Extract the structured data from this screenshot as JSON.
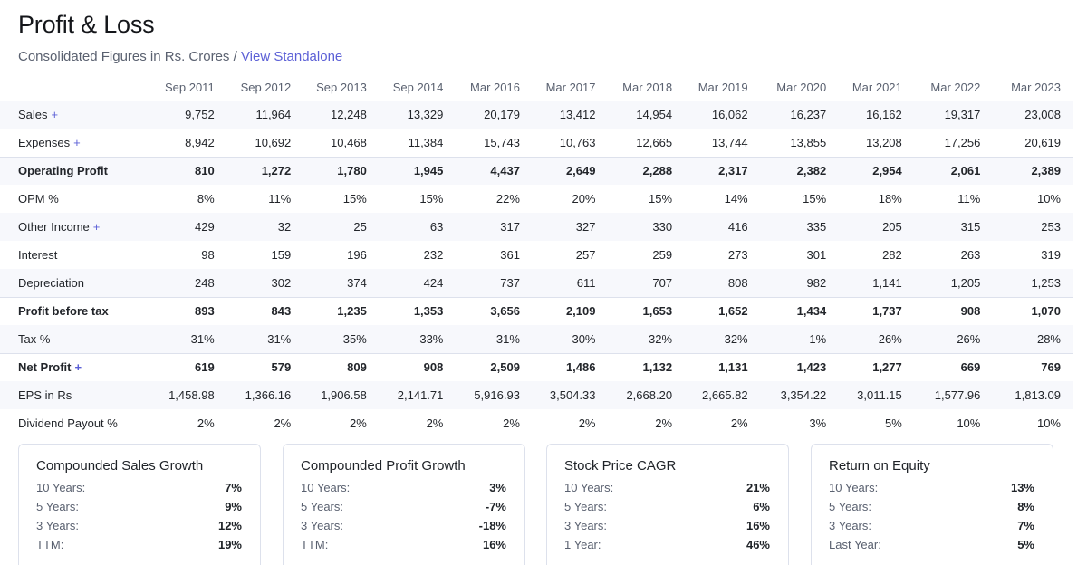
{
  "header": {
    "title": "Profit & Loss",
    "subtitle_prefix": "Consolidated Figures in Rs. Crores / ",
    "subtitle_link": "View Standalone"
  },
  "table": {
    "columns": [
      "Sep 2011",
      "Sep 2012",
      "Sep 2013",
      "Sep 2014",
      "Mar 2016",
      "Mar 2017",
      "Mar 2018",
      "Mar 2019",
      "Mar 2020",
      "Mar 2021",
      "Mar 2022",
      "Mar 2023"
    ],
    "rows": [
      {
        "label": "Sales",
        "expandable": true,
        "strong": false,
        "values": [
          "9,752",
          "11,964",
          "12,248",
          "13,329",
          "20,179",
          "13,412",
          "14,954",
          "16,062",
          "16,237",
          "16,162",
          "19,317",
          "23,008"
        ]
      },
      {
        "label": "Expenses",
        "expandable": true,
        "strong": false,
        "values": [
          "8,942",
          "10,692",
          "10,468",
          "11,384",
          "15,743",
          "10,763",
          "12,665",
          "13,744",
          "13,855",
          "13,208",
          "17,256",
          "20,619"
        ]
      },
      {
        "label": "Operating Profit",
        "expandable": false,
        "strong": true,
        "values": [
          "810",
          "1,272",
          "1,780",
          "1,945",
          "4,437",
          "2,649",
          "2,288",
          "2,317",
          "2,382",
          "2,954",
          "2,061",
          "2,389"
        ]
      },
      {
        "label": "OPM %",
        "expandable": false,
        "strong": false,
        "values": [
          "8%",
          "11%",
          "15%",
          "15%",
          "22%",
          "20%",
          "15%",
          "14%",
          "15%",
          "18%",
          "11%",
          "10%"
        ]
      },
      {
        "label": "Other Income",
        "expandable": true,
        "strong": false,
        "values": [
          "429",
          "32",
          "25",
          "63",
          "317",
          "327",
          "330",
          "416",
          "335",
          "205",
          "315",
          "253"
        ]
      },
      {
        "label": "Interest",
        "expandable": false,
        "strong": false,
        "values": [
          "98",
          "159",
          "196",
          "232",
          "361",
          "257",
          "259",
          "273",
          "301",
          "282",
          "263",
          "319"
        ]
      },
      {
        "label": "Depreciation",
        "expandable": false,
        "strong": false,
        "values": [
          "248",
          "302",
          "374",
          "424",
          "737",
          "611",
          "707",
          "808",
          "982",
          "1,141",
          "1,205",
          "1,253"
        ]
      },
      {
        "label": "Profit before tax",
        "expandable": false,
        "strong": true,
        "values": [
          "893",
          "843",
          "1,235",
          "1,353",
          "3,656",
          "2,109",
          "1,653",
          "1,652",
          "1,434",
          "1,737",
          "908",
          "1,070"
        ]
      },
      {
        "label": "Tax %",
        "expandable": false,
        "strong": false,
        "values": [
          "31%",
          "31%",
          "35%",
          "33%",
          "31%",
          "30%",
          "32%",
          "32%",
          "1%",
          "26%",
          "26%",
          "28%"
        ]
      },
      {
        "label": "Net Profit",
        "expandable": true,
        "strong": true,
        "values": [
          "619",
          "579",
          "809",
          "908",
          "2,509",
          "1,486",
          "1,132",
          "1,131",
          "1,423",
          "1,277",
          "669",
          "769"
        ]
      },
      {
        "label": "EPS in Rs",
        "expandable": false,
        "strong": false,
        "values": [
          "1,458.98",
          "1,366.16",
          "1,906.58",
          "2,141.71",
          "5,916.93",
          "3,504.33",
          "2,668.20",
          "2,665.82",
          "3,354.22",
          "3,011.15",
          "1,577.96",
          "1,813.09"
        ]
      },
      {
        "label": "Dividend Payout %",
        "expandable": false,
        "strong": false,
        "values": [
          "2%",
          "2%",
          "2%",
          "2%",
          "2%",
          "2%",
          "2%",
          "2%",
          "3%",
          "5%",
          "10%",
          "10%"
        ]
      }
    ]
  },
  "cards": [
    {
      "title": "Compounded Sales Growth",
      "rows": [
        [
          "10 Years:",
          "7%"
        ],
        [
          "5 Years:",
          "9%"
        ],
        [
          "3 Years:",
          "12%"
        ],
        [
          "TTM:",
          "19%"
        ]
      ]
    },
    {
      "title": "Compounded Profit Growth",
      "rows": [
        [
          "10 Years:",
          "3%"
        ],
        [
          "5 Years:",
          "-7%"
        ],
        [
          "3 Years:",
          "-18%"
        ],
        [
          "TTM:",
          "16%"
        ]
      ]
    },
    {
      "title": "Stock Price CAGR",
      "rows": [
        [
          "10 Years:",
          "21%"
        ],
        [
          "5 Years:",
          "6%"
        ],
        [
          "3 Years:",
          "16%"
        ],
        [
          "1 Year:",
          "46%"
        ]
      ]
    },
    {
      "title": "Return on Equity",
      "rows": [
        [
          "10 Years:",
          "13%"
        ],
        [
          "5 Years:",
          "8%"
        ],
        [
          "3 Years:",
          "7%"
        ],
        [
          "Last Year:",
          "5%"
        ]
      ]
    }
  ],
  "ui": {
    "plus_symbol": "+"
  },
  "colors": {
    "accent": "#5b5fd6",
    "row_alt": "#f7f8fc",
    "border": "#dde1ec"
  }
}
